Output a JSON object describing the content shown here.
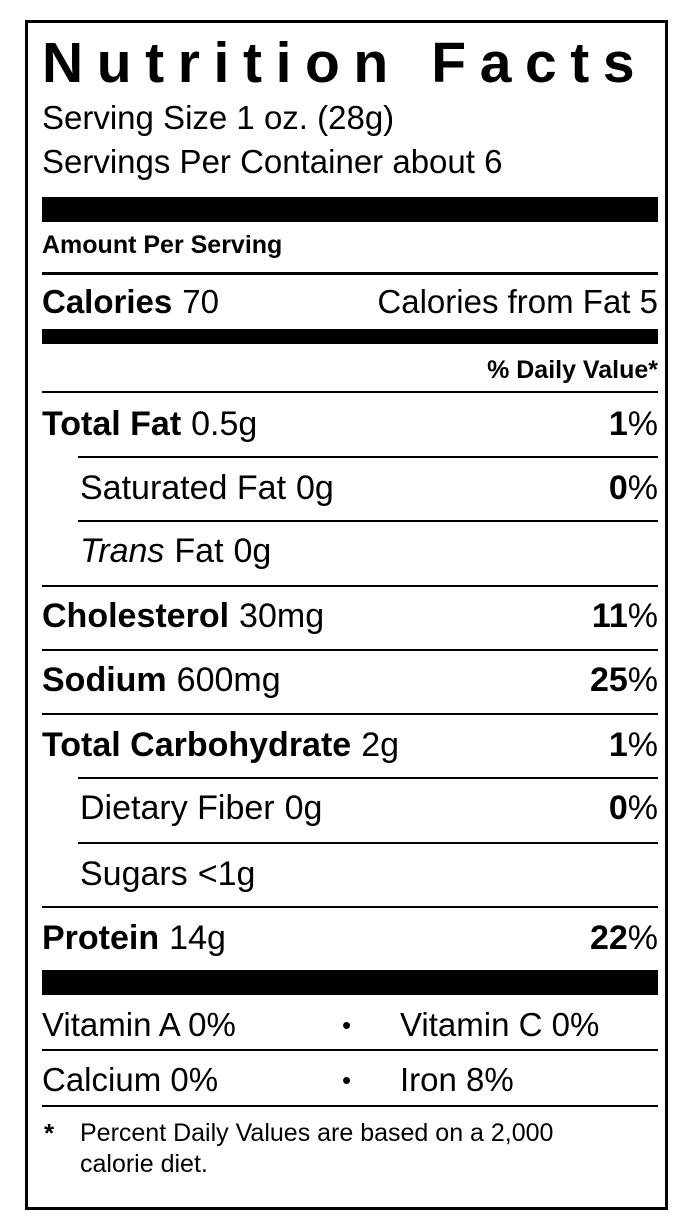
{
  "title": "Nutrition Facts",
  "serving_size": "Serving Size 1 oz. (28g)",
  "servings_per_container": "Servings Per Container about 6",
  "amount_per_serving": "Amount Per Serving",
  "calories": {
    "label": "Calories",
    "value": "70",
    "from_fat": "Calories from Fat 5"
  },
  "daily_value_header": "% Daily Value*",
  "nutrients": [
    {
      "name": "Total Fat",
      "amount": "0.5g",
      "dv": "1",
      "dv_unit": "%"
    },
    {
      "name": "Saturated Fat",
      "amount": "0g",
      "dv": "0",
      "dv_unit": "%"
    },
    {
      "name_italic": "Trans",
      "name": "Fat",
      "amount": "0g"
    },
    {
      "name": "Cholesterol",
      "amount": "30mg",
      "dv": "11",
      "dv_unit": "%"
    },
    {
      "name": "Sodium",
      "amount": "600mg",
      "dv": "25",
      "dv_unit": "%"
    },
    {
      "name": "Total Carbohydrate",
      "amount": "2g",
      "dv": "1",
      "dv_unit": "%"
    },
    {
      "name": "Dietary Fiber",
      "amount": "0g",
      "dv": "0",
      "dv_unit": "%"
    },
    {
      "name": "Sugars",
      "amount": "<1g"
    },
    {
      "name": "Protein",
      "amount": "14g",
      "dv": "22",
      "dv_unit": "%"
    }
  ],
  "vitamins": [
    [
      "Vitamin A 0%",
      "Vitamin C 0%"
    ],
    [
      "Calcium 0%",
      "Iron 8%"
    ]
  ],
  "separator": "•",
  "footnote": {
    "marker": "*",
    "text": "Percent Daily Values are based on a 2,000 calorie diet."
  }
}
